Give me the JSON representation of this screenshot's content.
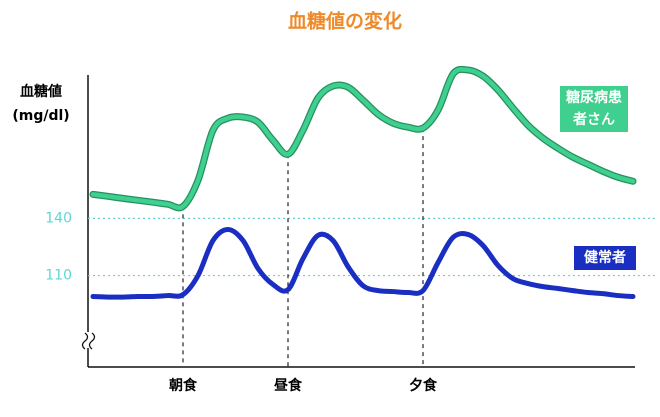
{
  "chart_data": {
    "type": "line",
    "title": "血糖値の変化",
    "y_label": "血糖値 (mg/dl)",
    "categories": [
      null,
      null,
      null,
      null,
      null,
      null,
      "朝食",
      null,
      null,
      null,
      null,
      null,
      null,
      "昼食",
      null,
      null,
      null,
      null,
      null,
      null,
      null,
      null,
      "夕食",
      null,
      null,
      null,
      null,
      null,
      null,
      null,
      null,
      null,
      null,
      null,
      null,
      null,
      null
    ],
    "series": [
      {
        "name": "糖尿病患者さん",
        "color": "#3fcf8e",
        "values": [
          152.6,
          151.6,
          150.5,
          149.5,
          148.5,
          147.4,
          146.3,
          160,
          186.3,
          192.6,
          193.2,
          190.5,
          181,
          173.7,
          186.3,
          203.2,
          209.5,
          208.9,
          202.1,
          194.7,
          190,
          187.9,
          187.4,
          196.8,
          215.8,
          217.9,
          214.7,
          207.4,
          197.9,
          188.9,
          182.1,
          176.8,
          172.1,
          168.4,
          164.7,
          161.6,
          159.5
        ]
      },
      {
        "name": "健常者",
        "color": "#1a2fc2",
        "values": [
          99,
          98.7,
          98.7,
          99,
          99,
          99.5,
          100,
          110,
          128.4,
          134.2,
          128.4,
          113.7,
          105.3,
          102.6,
          118.9,
          131.1,
          128.4,
          114.7,
          104.7,
          102.1,
          101.6,
          101.1,
          102.1,
          116.8,
          130,
          131.6,
          125.8,
          115.3,
          108.4,
          105.8,
          104.2,
          103.2,
          102.1,
          101.1,
          100.5,
          99.5,
          99
        ]
      }
    ],
    "ylim": [
      62,
      220
    ],
    "yticks": [
      110,
      140
    ],
    "grid": true,
    "tick_color": "#5ed6d6",
    "title_color": "#ee8a2a"
  }
}
